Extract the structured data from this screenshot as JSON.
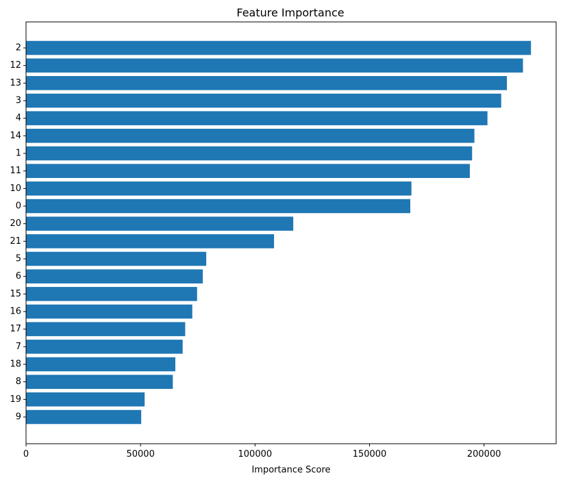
{
  "chart_data": {
    "type": "bar",
    "orientation": "horizontal",
    "title": "Feature Importance",
    "xlabel": "Importance Score",
    "ylabel": "",
    "bar_color": "#1f77b4",
    "xlim": [
      0,
      231500
    ],
    "xticks": [
      0,
      50000,
      100000,
      150000,
      200000
    ],
    "xtick_labels": [
      "0",
      "50000",
      "100000",
      "150000",
      "200000"
    ],
    "categories": [
      "2",
      "12",
      "13",
      "3",
      "4",
      "14",
      "1",
      "11",
      "10",
      "0",
      "20",
      "21",
      "5",
      "6",
      "15",
      "16",
      "17",
      "7",
      "18",
      "8",
      "19",
      "9"
    ],
    "values": [
      220500,
      217000,
      210000,
      207500,
      201500,
      195800,
      194800,
      193800,
      168300,
      167800,
      116700,
      108300,
      78700,
      77200,
      74700,
      72600,
      69500,
      68400,
      65200,
      64100,
      51800,
      50300
    ],
    "grid": false,
    "legend": "none"
  }
}
